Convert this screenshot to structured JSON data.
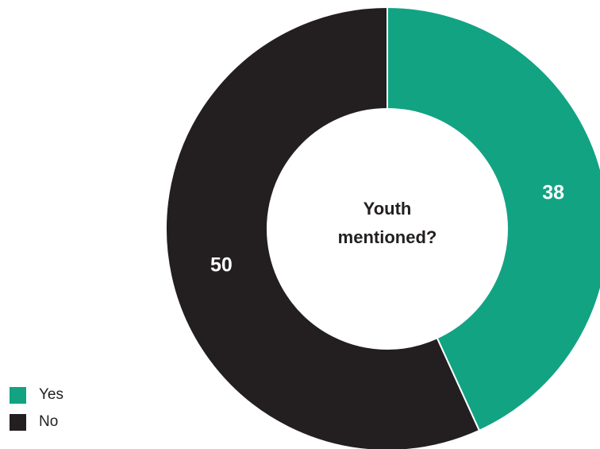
{
  "chart_data": {
    "type": "pie",
    "title": "Youth mentioned?",
    "categories": [
      "Yes",
      "No"
    ],
    "values": [
      38,
      50
    ],
    "colors": [
      "#12a383",
      "#231f20"
    ],
    "legend_position": "bottom-left"
  }
}
